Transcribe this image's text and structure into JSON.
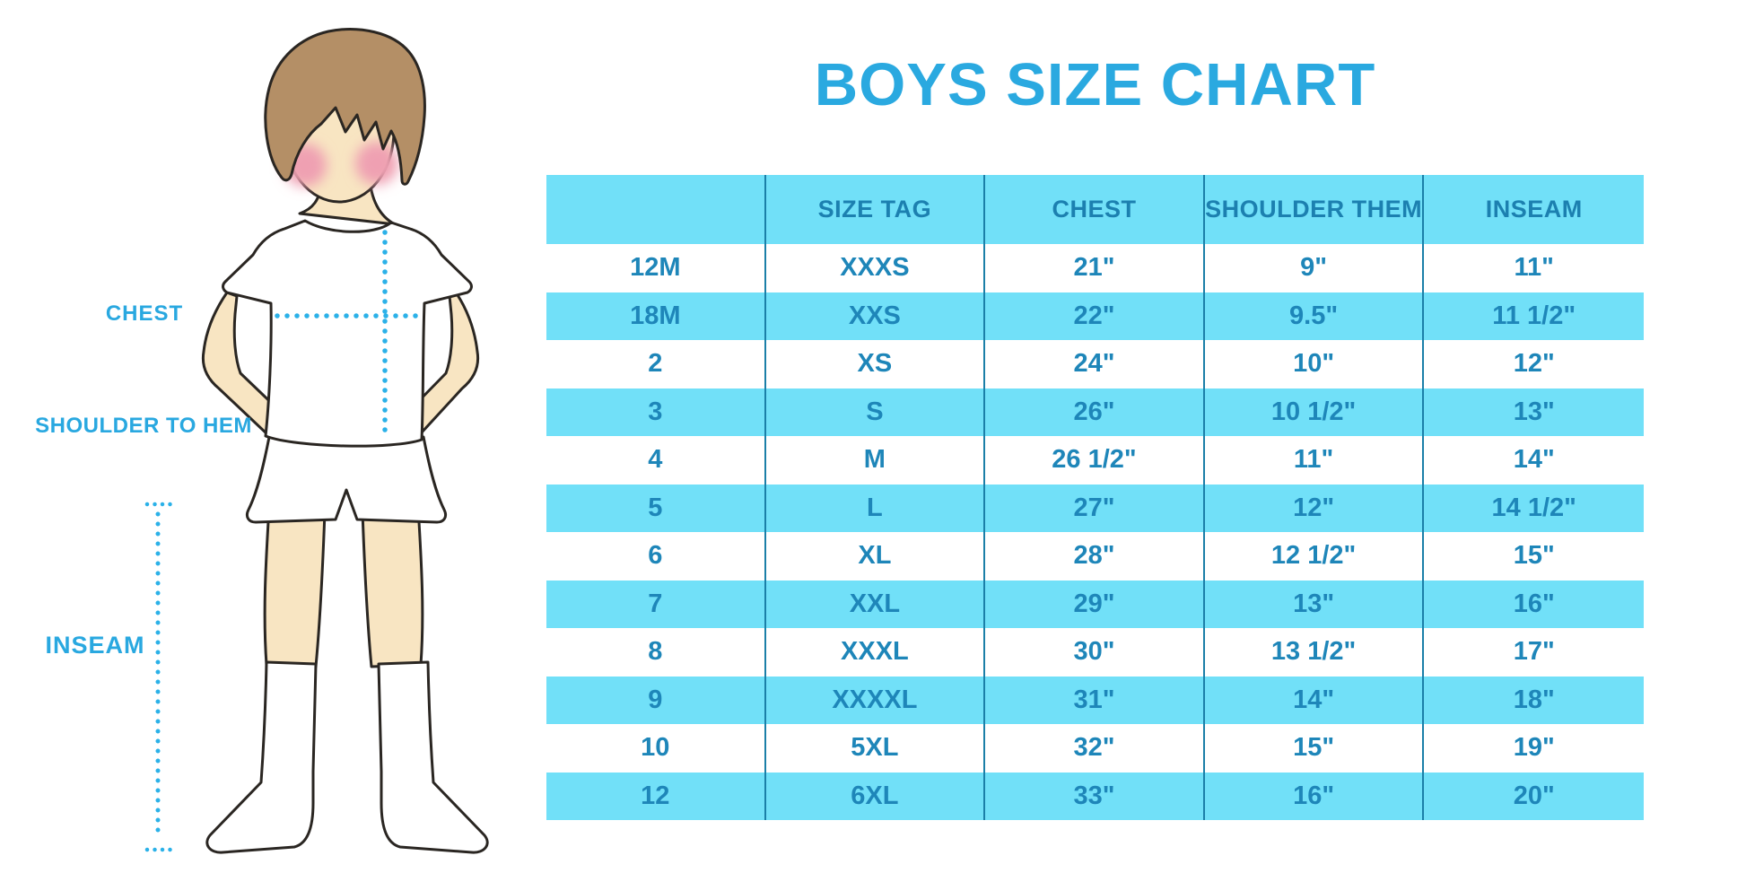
{
  "title": "BOYS SIZE CHART",
  "diagram": {
    "labels": {
      "chest": "CHEST",
      "shoulder_to_hem": "SHOULDER TO HEM",
      "inseam": "INSEAM"
    }
  },
  "chart_data": {
    "type": "table",
    "title": "BOYS SIZE CHART",
    "columns": [
      "",
      "SIZE TAG",
      "CHEST",
      "SHOULDER THEM",
      "INSEAM"
    ],
    "rows": [
      [
        "12M",
        "XXXS",
        "21\"",
        "9\"",
        "11\""
      ],
      [
        "18M",
        "XXS",
        "22\"",
        "9.5\"",
        "11 1/2\""
      ],
      [
        "2",
        "XS",
        "24\"",
        "10\"",
        "12\""
      ],
      [
        "3",
        "S",
        "26\"",
        "10 1/2\"",
        "13\""
      ],
      [
        "4",
        "M",
        "26 1/2\"",
        "11\"",
        "14\""
      ],
      [
        "5",
        "L",
        "27\"",
        "12\"",
        "14 1/2\""
      ],
      [
        "6",
        "XL",
        "28\"",
        "12 1/2\"",
        "15\""
      ],
      [
        "7",
        "XXL",
        "29\"",
        "13\"",
        "16\""
      ],
      [
        "8",
        "XXXL",
        "30\"",
        "13 1/2\"",
        "17\""
      ],
      [
        "9",
        "XXXXL",
        "31\"",
        "14\"",
        "18\""
      ],
      [
        "10",
        "5XL",
        "32\"",
        "15\"",
        "19\""
      ],
      [
        "12",
        "6XL",
        "33\"",
        "16\"",
        "20\""
      ]
    ],
    "layout": {
      "stripe_colors": [
        "#FFFFFF",
        "#71E0F8"
      ],
      "header_bg": "#71E0F8",
      "first_data_row_stripe": "white",
      "grid": "vertical dividers only"
    }
  },
  "colors": {
    "accent_blue": "#2AA9E0",
    "cyan_fill": "#71E0F8",
    "table_text": "#1E86B9",
    "divider_line": "#1B7FA8",
    "dotted_line": "#2BB1E8",
    "hair": "#B48F66",
    "skin": "#F8E5C2",
    "cheek": "#EFA0B2",
    "outline": "#2A2622"
  }
}
